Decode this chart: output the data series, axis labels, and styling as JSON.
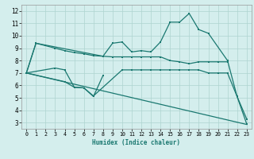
{
  "xlabel": "Humidex (Indice chaleur)",
  "bg_color": "#d4eeed",
  "grid_color": "#aed4d0",
  "line_color": "#1a7870",
  "xlim": [
    -0.5,
    23.5
  ],
  "ylim": [
    2.5,
    12.5
  ],
  "xticks": [
    0,
    1,
    2,
    3,
    4,
    5,
    6,
    7,
    8,
    9,
    10,
    11,
    12,
    13,
    14,
    15,
    16,
    17,
    18,
    19,
    20,
    21,
    22,
    23
  ],
  "yticks": [
    3,
    4,
    5,
    6,
    7,
    8,
    9,
    10,
    11,
    12
  ],
  "line1_x": [
    0,
    1,
    2,
    3,
    4,
    5,
    6,
    7,
    8,
    9,
    10,
    11,
    12,
    13,
    14,
    15,
    16,
    17,
    18,
    19,
    20,
    21
  ],
  "line1_y": [
    7.0,
    9.4,
    9.2,
    9.0,
    8.8,
    8.65,
    8.55,
    8.4,
    8.35,
    8.3,
    8.3,
    8.3,
    8.3,
    8.3,
    8.3,
    8.0,
    7.9,
    7.75,
    7.9,
    7.9,
    7.9,
    7.9
  ],
  "line2_x": [
    0,
    1,
    8,
    9,
    10,
    11,
    12,
    13,
    14,
    15,
    16,
    17,
    18,
    19,
    21,
    22,
    23
  ],
  "line2_y": [
    7.0,
    9.4,
    8.35,
    9.4,
    9.5,
    8.7,
    8.8,
    8.7,
    9.5,
    11.1,
    11.1,
    11.8,
    10.5,
    10.2,
    8.0,
    5.1,
    2.9
  ],
  "line3_x": [
    0,
    3,
    4,
    5,
    6,
    7,
    10,
    11,
    12,
    13,
    14,
    15,
    16,
    17,
    18,
    19,
    20,
    21,
    22,
    23
  ],
  "line3_y": [
    7.0,
    7.4,
    7.25,
    5.85,
    5.8,
    5.15,
    7.25,
    7.25,
    7.25,
    7.25,
    7.25,
    7.25,
    7.25,
    7.25,
    7.25,
    7.0,
    7.0,
    7.0,
    5.1,
    3.3
  ],
  "line4_x": [
    0,
    4,
    5,
    6,
    7,
    8
  ],
  "line4_y": [
    7.0,
    6.3,
    5.85,
    5.8,
    5.1,
    6.8
  ],
  "line5_x": [
    0,
    23
  ],
  "line5_y": [
    7.0,
    2.85
  ]
}
